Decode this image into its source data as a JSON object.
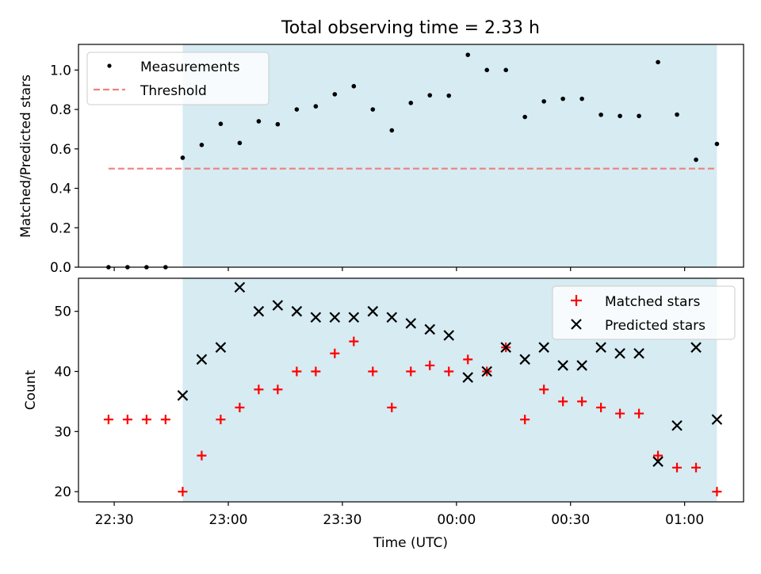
{
  "chart_data": {
    "title": "Total observing time = 2.33 h",
    "xlabel": "Time (UTC)",
    "x_tick_labels": [
      "22:30",
      "23:00",
      "23:30",
      "00:00",
      "00:30",
      "01:00"
    ],
    "x_tick_minutes": [
      0,
      30,
      60,
      90,
      120,
      150
    ],
    "x_range_minutes": [
      -9.4,
      165.5
    ],
    "shaded_span_minutes": [
      18.0,
      158.5
    ],
    "shade_color": "#add8e6",
    "panels": [
      {
        "type": "scatter",
        "ylabel": "Matched/Predicted stars",
        "ylim": [
          0.0,
          1.13
        ],
        "yticks": [
          0.0,
          0.2,
          0.4,
          0.6,
          0.8,
          1.0
        ],
        "ytick_labels": [
          "0.0",
          "0.2",
          "0.4",
          "0.6",
          "0.8",
          "1.0"
        ],
        "legend": {
          "placement": "upper-left",
          "entries": [
            "Measurements",
            "Threshold"
          ]
        },
        "series": [
          {
            "name": "Measurements",
            "marker": "dot",
            "color": "#000000",
            "x": [
              -1.5,
              3.5,
              8.5,
              13.5,
              18.0,
              23.0,
              28.0,
              33.0,
              38.0,
              43.0,
              48.0,
              53.0,
              58.0,
              63.0,
              68.0,
              73.0,
              78.0,
              83.0,
              88.0,
              93.0,
              98.0,
              103.0,
              108.0,
              113.0,
              118.0,
              123.0,
              128.0,
              133.0,
              138.0,
              143.0,
              148.0,
              153.0,
              158.5
            ],
            "y": [
              0.0,
              0.0,
              0.0,
              0.0,
              0.555,
              0.62,
              0.727,
              0.63,
              0.74,
              0.725,
              0.8,
              0.816,
              0.877,
              0.918,
              0.8,
              0.694,
              0.833,
              0.872,
              0.87,
              1.077,
              1.0,
              1.0,
              0.762,
              0.841,
              0.854,
              0.854,
              0.773,
              0.767,
              0.767,
              1.04,
              0.774,
              0.545,
              0.625
            ]
          },
          {
            "name": "Threshold",
            "style": "dashed-line",
            "color": "#f08080",
            "x": [
              -1.5,
              158.5
            ],
            "y": [
              0.5,
              0.5
            ]
          }
        ]
      },
      {
        "type": "scatter",
        "ylabel": "Count",
        "ylim": [
          18.3,
          55.5
        ],
        "yticks": [
          20,
          30,
          40,
          50
        ],
        "ytick_labels": [
          "20",
          "30",
          "40",
          "50"
        ],
        "legend": {
          "placement": "upper-right",
          "entries": [
            "Matched stars",
            "Predicted stars"
          ]
        },
        "series": [
          {
            "name": "Matched stars",
            "marker": "plus",
            "color": "#ff0000",
            "x": [
              -1.5,
              3.5,
              8.5,
              13.5,
              18.0,
              23.0,
              28.0,
              33.0,
              38.0,
              43.0,
              48.0,
              53.0,
              58.0,
              63.0,
              68.0,
              73.0,
              78.0,
              83.0,
              88.0,
              93.0,
              98.0,
              103.0,
              108.0,
              113.0,
              118.0,
              123.0,
              128.0,
              133.0,
              138.0,
              143.0,
              148.0,
              153.0,
              158.5
            ],
            "y": [
              32,
              32,
              32,
              32,
              20,
              26,
              32,
              34,
              37,
              37,
              40,
              40,
              43,
              45,
              40,
              34,
              40,
              41,
              40,
              42,
              40,
              44,
              32,
              37,
              35,
              35,
              34,
              33,
              33,
              26,
              24,
              24,
              20
            ]
          },
          {
            "name": "Predicted stars",
            "marker": "x",
            "color": "#000000",
            "x": [
              18.0,
              23.0,
              28.0,
              33.0,
              38.0,
              43.0,
              48.0,
              53.0,
              58.0,
              63.0,
              68.0,
              73.0,
              78.0,
              83.0,
              88.0,
              93.0,
              98.0,
              103.0,
              108.0,
              113.0,
              118.0,
              123.0,
              128.0,
              133.0,
              138.0,
              143.0,
              148.0,
              153.0,
              158.5
            ],
            "y": [
              36,
              42,
              44,
              54,
              50,
              51,
              50,
              49,
              49,
              49,
              50,
              49,
              48,
              47,
              46,
              39,
              40,
              44,
              42,
              44,
              41,
              41,
              44,
              43,
              43,
              25,
              31,
              44,
              32
            ]
          }
        ]
      }
    ]
  }
}
